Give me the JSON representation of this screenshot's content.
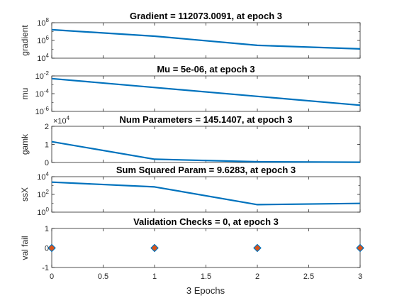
{
  "figure": {
    "xlabel": "3 Epochs"
  },
  "colors": {
    "line": "#0072BD",
    "marker_fill": "#D95319",
    "marker_edge": "#0072BD",
    "axes": "#262626"
  },
  "chart_data": [
    {
      "type": "line",
      "title": "Gradient = 112073.0091, at epoch 3",
      "ylabel": "gradient",
      "yscale": "log",
      "ylim": [
        10000,
        100000000
      ],
      "yticks": [
        10000,
        1000000,
        100000000
      ],
      "ytick_labels": [
        {
          "base": "10",
          "exp": "4"
        },
        {
          "base": "10",
          "exp": "6"
        },
        {
          "base": "10",
          "exp": "8"
        }
      ],
      "xlim": [
        0,
        3
      ],
      "x": [
        0,
        1,
        2,
        3
      ],
      "values": [
        16000000,
        3000000,
        280000,
        112073.0091
      ],
      "show_xticks": false
    },
    {
      "type": "line",
      "title": "Mu = 5e-06, at epoch 3",
      "ylabel": "mu",
      "yscale": "log",
      "ylim": [
        1e-06,
        0.01
      ],
      "yticks": [
        1e-06,
        0.0001,
        0.01
      ],
      "ytick_labels": [
        {
          "base": "10",
          "exp": "-6"
        },
        {
          "base": "10",
          "exp": "-4"
        },
        {
          "base": "10",
          "exp": "-2"
        }
      ],
      "xlim": [
        0,
        3
      ],
      "x": [
        0,
        1,
        2,
        3
      ],
      "values": [
        0.005,
        0.0005,
        5e-05,
        5e-06
      ],
      "show_xticks": false
    },
    {
      "type": "line",
      "title": "Num Parameters = 145.1407, at epoch 3",
      "ylabel": "gamk",
      "yscale": "linear",
      "ylim": [
        0,
        20000
      ],
      "yticks": [
        0,
        10000,
        20000
      ],
      "ytick_labels": [
        "0",
        "1",
        "2"
      ],
      "multiplier": {
        "base": "×10",
        "exp": "4"
      },
      "xlim": [
        0,
        3
      ],
      "x": [
        0,
        1,
        2,
        3
      ],
      "values": [
        11500,
        1800,
        400,
        145.1407
      ],
      "show_xticks": false
    },
    {
      "type": "line",
      "title": "Sum Squared Param = 9.6283, at epoch 3",
      "ylabel": "ssX",
      "yscale": "log",
      "ylim": [
        1,
        10000
      ],
      "yticks": [
        1,
        100,
        10000
      ],
      "ytick_labels": [
        {
          "base": "10",
          "exp": "0"
        },
        {
          "base": "10",
          "exp": "2"
        },
        {
          "base": "10",
          "exp": "4"
        }
      ],
      "xlim": [
        0,
        3
      ],
      "x": [
        0,
        1,
        2,
        3
      ],
      "values": [
        2400,
        700,
        7,
        9.6283
      ],
      "show_xticks": false
    },
    {
      "type": "scatter",
      "title": "Validation Checks = 0, at epoch 3",
      "ylabel": "val fail",
      "yscale": "linear",
      "ylim": [
        -1,
        1
      ],
      "yticks": [
        -1,
        0,
        1
      ],
      "ytick_labels": [
        "-1",
        "0",
        "1"
      ],
      "xlim": [
        0,
        3
      ],
      "x": [
        0,
        1,
        2,
        3
      ],
      "values": [
        0,
        0,
        0,
        0
      ],
      "marker": "diamond",
      "show_xticks": true,
      "xticks": [
        0,
        0.5,
        1,
        1.5,
        2,
        2.5,
        3
      ],
      "xtick_labels": [
        "0",
        "0.5",
        "1",
        "1.5",
        "2",
        "2.5",
        "3"
      ]
    }
  ]
}
